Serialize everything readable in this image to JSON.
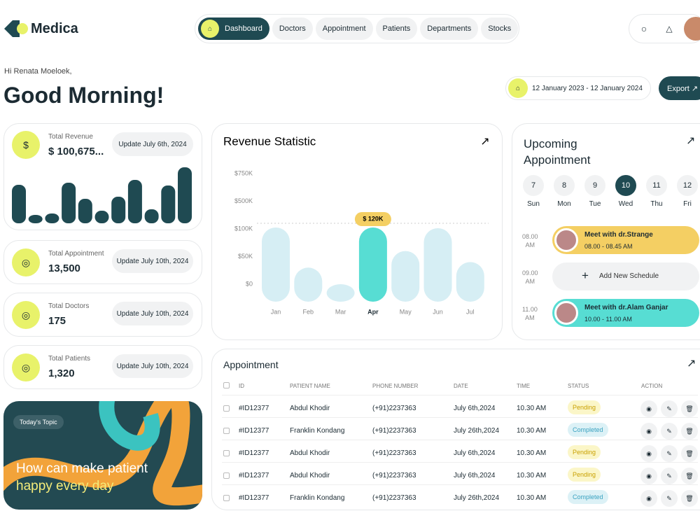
{
  "header": {
    "logo": "Medica",
    "nav": [
      "Dashboard",
      "Doctors",
      "Appointment",
      "Patients",
      "Departments",
      "Stocks"
    ],
    "active_nav": 0
  },
  "greeting": {
    "hello": "Hi Renata Moeloek,",
    "title": "Good Morning!"
  },
  "date_range": "12 January 2023 - 12 January 2024",
  "export": "Export",
  "stats": [
    {
      "label": "Total Revenue",
      "value": "$ 100,675...",
      "update": "Update July 6th, 2024"
    },
    {
      "label": "Total Appointment",
      "value": "13,500",
      "update": "Update July 10th, 2024"
    },
    {
      "label": "Total Doctors",
      "value": "175",
      "update": "Update July 10th, 2024"
    },
    {
      "label": "Total Patients",
      "value": "1,320",
      "update": "Update July 10th, 2024"
    }
  ],
  "topic": {
    "tag": "Today's Topic",
    "lines": [
      "How can make patient",
      "happy every day"
    ]
  },
  "chart_data": {
    "type": "bar",
    "title": "Revenue Statistic",
    "categories": [
      "Jan",
      "Feb",
      "Mar",
      "Apr",
      "May",
      "Jun",
      "Jul"
    ],
    "values": [
      120000,
      30000,
      0,
      120000,
      60000,
      110000,
      40000
    ],
    "value_labels": [
      null,
      null,
      null,
      "$ 120K",
      null,
      null,
      null
    ],
    "colors": [
      "#d6eef4",
      "#d6eef4",
      "#d6eef4",
      "#57ddd3",
      "#d6eef4",
      "#d6eef4",
      "#d6eef4"
    ],
    "ylim": [
      0,
      750000
    ],
    "yticks": [
      {
        "value": 0,
        "label": "$0"
      },
      {
        "value": 50000,
        "label": "$50K"
      },
      {
        "value": 100000,
        "label": "$100K"
      },
      {
        "value": 500000,
        "label": "$500K"
      },
      {
        "value": 750000,
        "label": "$750K"
      }
    ]
  },
  "upcoming": {
    "title_lines": [
      "Upcoming",
      "Appointment"
    ],
    "days": [
      {
        "num": "7",
        "day": "Sun"
      },
      {
        "num": "8",
        "day": "Mon"
      },
      {
        "num": "9",
        "day": "Tue"
      },
      {
        "num": "10",
        "day": "Wed"
      },
      {
        "num": "11",
        "day": "Thu"
      },
      {
        "num": "12",
        "day": "Fri"
      }
    ],
    "active_day": 3,
    "slots": [
      {
        "time": [
          "08.00",
          "AM"
        ],
        "title": "Meet with dr.Strange",
        "sub": "08.00 - 08.45 AM",
        "color": "#f4cf63"
      },
      {
        "time": [
          "09.00",
          "AM"
        ],
        "title": "Add New Schedule"
      },
      {
        "time": [
          "11.00",
          "AM"
        ],
        "title": "Meet with dr.Alam Ganjar",
        "sub": "10.00 - 11.00 AM",
        "color": "#57ddd3"
      }
    ]
  },
  "table": {
    "title": "Appointment",
    "columns": [
      "ID",
      "PATIENT NAME",
      "PHONE NUMBER",
      "DATE",
      "TIME",
      "STATUS",
      "ACTION"
    ],
    "rows": [
      [
        "#ID12377",
        "Abdul Khodir",
        "(+91)2237363",
        "July 6th,2024",
        "10.30 AM",
        "Pending"
      ],
      [
        "#ID12377",
        "Franklin Kondang",
        "(+91)2237363",
        "July 26th,2024",
        "10.30 AM",
        "Completed"
      ],
      [
        "#ID12377",
        "Abdul Khodir",
        "(+91)2237363",
        "July 6th,2024",
        "10.30 AM",
        "Pending"
      ],
      [
        "#ID12377",
        "Abdul Khodir",
        "(+91)2237363",
        "July 6th,2024",
        "10.30 AM",
        "Pending"
      ],
      [
        "#ID12377",
        "Franklin Kondang",
        "(+91)2237363",
        "July 26th,2024",
        "10.30 AM",
        "Completed"
      ]
    ]
  }
}
